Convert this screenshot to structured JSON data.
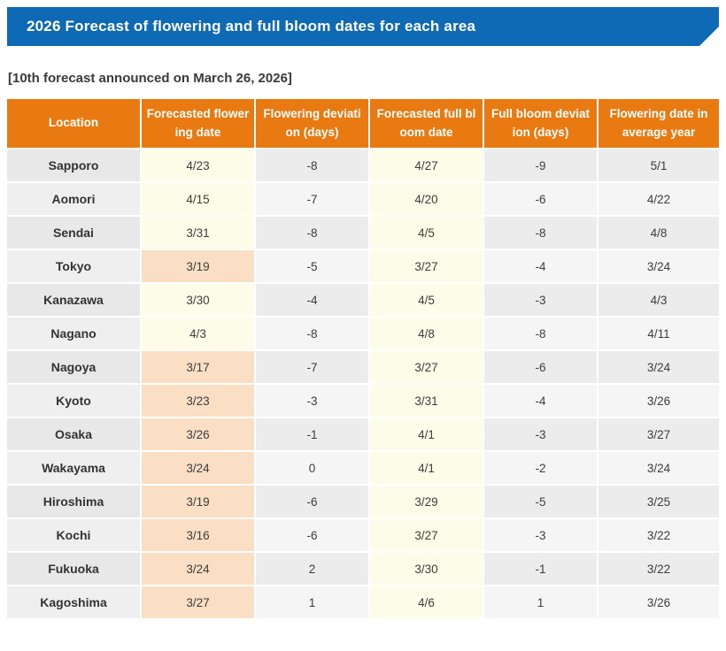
{
  "banner": {
    "title": "2026 Forecast of flowering and full bloom dates for each area",
    "background_color": "#0E6AB4"
  },
  "subtitle": "[10th forecast announced on March 26, 2026]",
  "table": {
    "header_background_color": "#E97A11",
    "highlight_colors": {
      "forecast_date_cream": "#FDFCE8",
      "forecast_date_peach": "#FADFC4",
      "location_gray": "#E8E8E8",
      "row_stripe_gray": "#ECECEC",
      "row_stripe_light": "#F5F5F5"
    },
    "columns": [
      {
        "key": "location",
        "label": "Location"
      },
      {
        "key": "flowering_date",
        "label": "Forecasted flower\ning date"
      },
      {
        "key": "flowering_deviation",
        "label": "Flowering deviati\non (days)"
      },
      {
        "key": "full_bloom_date",
        "label": "Forecasted full bl\noom date"
      },
      {
        "key": "full_bloom_deviation",
        "label": "Full bloom deviat\nion (days)"
      },
      {
        "key": "average_year_date",
        "label": "Flowering date in\naverage year"
      }
    ],
    "rows": [
      {
        "location": "Sapporo",
        "flowering_date": "4/23",
        "flowering_deviation": "-8",
        "full_bloom_date": "4/27",
        "full_bloom_deviation": "-9",
        "average_year_date": "5/1",
        "flowering_highlight": false
      },
      {
        "location": "Aomori",
        "flowering_date": "4/15",
        "flowering_deviation": "-7",
        "full_bloom_date": "4/20",
        "full_bloom_deviation": "-6",
        "average_year_date": "4/22",
        "flowering_highlight": false
      },
      {
        "location": "Sendai",
        "flowering_date": "3/31",
        "flowering_deviation": "-8",
        "full_bloom_date": "4/5",
        "full_bloom_deviation": "-8",
        "average_year_date": "4/8",
        "flowering_highlight": false
      },
      {
        "location": "Tokyo",
        "flowering_date": "3/19",
        "flowering_deviation": "-5",
        "full_bloom_date": "3/27",
        "full_bloom_deviation": "-4",
        "average_year_date": "3/24",
        "flowering_highlight": true
      },
      {
        "location": "Kanazawa",
        "flowering_date": "3/30",
        "flowering_deviation": "-4",
        "full_bloom_date": "4/5",
        "full_bloom_deviation": "-3",
        "average_year_date": "4/3",
        "flowering_highlight": false
      },
      {
        "location": "Nagano",
        "flowering_date": "4/3",
        "flowering_deviation": "-8",
        "full_bloom_date": "4/8",
        "full_bloom_deviation": "-8",
        "average_year_date": "4/11",
        "flowering_highlight": false
      },
      {
        "location": "Nagoya",
        "flowering_date": "3/17",
        "flowering_deviation": "-7",
        "full_bloom_date": "3/27",
        "full_bloom_deviation": "-6",
        "average_year_date": "3/24",
        "flowering_highlight": true
      },
      {
        "location": "Kyoto",
        "flowering_date": "3/23",
        "flowering_deviation": "-3",
        "full_bloom_date": "3/31",
        "full_bloom_deviation": "-4",
        "average_year_date": "3/26",
        "flowering_highlight": true
      },
      {
        "location": "Osaka",
        "flowering_date": "3/26",
        "flowering_deviation": "-1",
        "full_bloom_date": "4/1",
        "full_bloom_deviation": "-3",
        "average_year_date": "3/27",
        "flowering_highlight": true
      },
      {
        "location": "Wakayama",
        "flowering_date": "3/24",
        "flowering_deviation": "0",
        "full_bloom_date": "4/1",
        "full_bloom_deviation": "-2",
        "average_year_date": "3/24",
        "flowering_highlight": true
      },
      {
        "location": "Hiroshima",
        "flowering_date": "3/19",
        "flowering_deviation": "-6",
        "full_bloom_date": "3/29",
        "full_bloom_deviation": "-5",
        "average_year_date": "3/25",
        "flowering_highlight": true
      },
      {
        "location": "Kochi",
        "flowering_date": "3/16",
        "flowering_deviation": "-6",
        "full_bloom_date": "3/27",
        "full_bloom_deviation": "-3",
        "average_year_date": "3/22",
        "flowering_highlight": true
      },
      {
        "location": "Fukuoka",
        "flowering_date": "3/24",
        "flowering_deviation": "2",
        "full_bloom_date": "3/30",
        "full_bloom_deviation": "-1",
        "average_year_date": "3/22",
        "flowering_highlight": true
      },
      {
        "location": "Kagoshima",
        "flowering_date": "3/27",
        "flowering_deviation": "1",
        "full_bloom_date": "4/6",
        "full_bloom_deviation": "1",
        "average_year_date": "3/26",
        "flowering_highlight": true
      }
    ]
  }
}
